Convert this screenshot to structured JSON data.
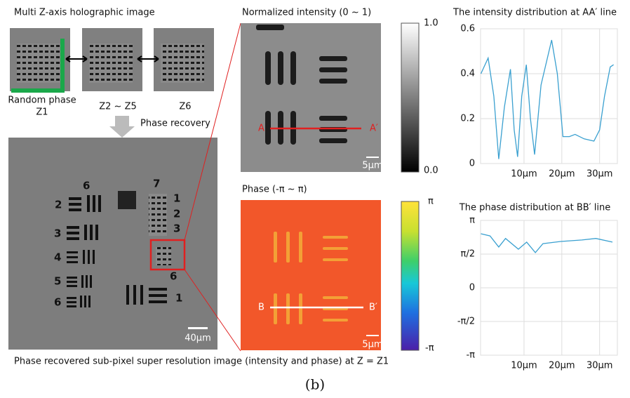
{
  "figure": {
    "top_title": "Multi Z-axis holographic image",
    "holo_labels": [
      "Random phase",
      "Z1",
      "Z2 ~ Z5",
      "Z6"
    ],
    "phase_recovery": "Phase recovery",
    "intensity_title": "Normalized intensity (0 ~ 1)",
    "intensity_bar": [
      "1.0",
      "0.0"
    ],
    "line_a": [
      "A",
      "A′"
    ],
    "scale_5um": "5μm",
    "phase_title": "Phase (-π ~ π)",
    "phase_bar": [
      "π",
      "-π"
    ],
    "line_b": [
      "B",
      "B′"
    ],
    "scale_5um_b": "5μm",
    "scale_40um": "40μm",
    "group_labels": [
      "6",
      "2",
      "3",
      "4",
      "5",
      "6",
      "7",
      "1",
      "2",
      "3",
      "6",
      "1"
    ],
    "caption": "Phase recovered sub-pixel super resolution image (intensity and phase) at Z = Z1",
    "panel": "(b)"
  },
  "chart_data": [
    {
      "type": "line",
      "title": "The intensity distribution at AA′ line",
      "color": "#3aa0d0",
      "grid": true,
      "x": [
        -1.4,
        0.5,
        2,
        3.3,
        4.8,
        6.4,
        7.4,
        8.3,
        9.4,
        10.6,
        11.7,
        12.8,
        14.5,
        17.3,
        18.8,
        20.3,
        22,
        23.5,
        25.9,
        28.5,
        30,
        31.3,
        32.8,
        33.7
      ],
      "values": [
        0.4,
        0.47,
        0.3,
        0.02,
        0.25,
        0.42,
        0.15,
        0.03,
        0.3,
        0.44,
        0.2,
        0.04,
        0.35,
        0.55,
        0.4,
        0.12,
        0.12,
        0.13,
        0.11,
        0.1,
        0.15,
        0.3,
        0.43,
        0.44
      ],
      "xlim": [
        -1.5,
        34.7
      ],
      "ylim": [
        0,
        0.6
      ],
      "xticks": [
        {
          "value": 10,
          "label": "10μm"
        },
        {
          "value": 20,
          "label": "20μm"
        },
        {
          "value": 30,
          "label": "30μm"
        }
      ],
      "yticks": [
        0,
        0.2,
        0.4,
        0.6
      ]
    },
    {
      "type": "line",
      "title": "The phase distribution at BB′ line",
      "color": "#3aa0d0",
      "grid": true,
      "x": [
        -1.4,
        1,
        3.3,
        5.1,
        8.5,
        10.7,
        13,
        15,
        19.7,
        25.3,
        29,
        33.4
      ],
      "values": [
        2.52,
        2.42,
        1.9,
        2.3,
        1.8,
        2.13,
        1.64,
        2.06,
        2.16,
        2.23,
        2.3,
        2.13
      ],
      "xlim": [
        -1.5,
        34.7
      ],
      "ylim": [
        -3.14159,
        3.14159
      ],
      "xticks": [
        {
          "value": 10,
          "label": "10μm"
        },
        {
          "value": 20,
          "label": "20μm"
        },
        {
          "value": 30,
          "label": "30μm"
        }
      ],
      "yticks": [
        {
          "value": -3.14159,
          "label": "-π"
        },
        {
          "value": -1.5708,
          "label": "-π/2"
        },
        0,
        {
          "value": 1.5708,
          "label": "π/2"
        },
        {
          "value": 3.14159,
          "label": "π"
        }
      ]
    }
  ]
}
